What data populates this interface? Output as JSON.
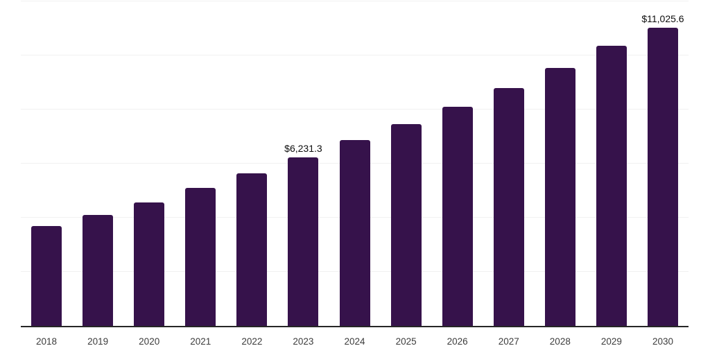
{
  "chart_data": {
    "type": "bar",
    "title": "",
    "xlabel": "",
    "ylabel": "",
    "categories": [
      "2018",
      "2019",
      "2020",
      "2021",
      "2022",
      "2023",
      "2024",
      "2025",
      "2026",
      "2027",
      "2028",
      "2029",
      "2030"
    ],
    "values": [
      3690,
      4110,
      4560,
      5100,
      5650,
      6231.3,
      6870,
      7450,
      8110,
      8800,
      9540,
      10360,
      11025.6
    ],
    "data_labels": [
      {
        "index": 5,
        "text": "$6,231.3"
      },
      {
        "index": 12,
        "text": "$11,025.6"
      }
    ],
    "ylim": [
      0,
      12000
    ],
    "gridline_step": 2000,
    "grid": "horizontal-only",
    "legend": "none",
    "y_tick_labels": "none",
    "bar_color": "#36124B",
    "background_color": "#FFFFFF",
    "grid_color": "#F1F1F1",
    "axis_line_color": "#262626",
    "x_tick_label_color": "#3C3C3C",
    "data_label_color": "#0D0D0D"
  }
}
